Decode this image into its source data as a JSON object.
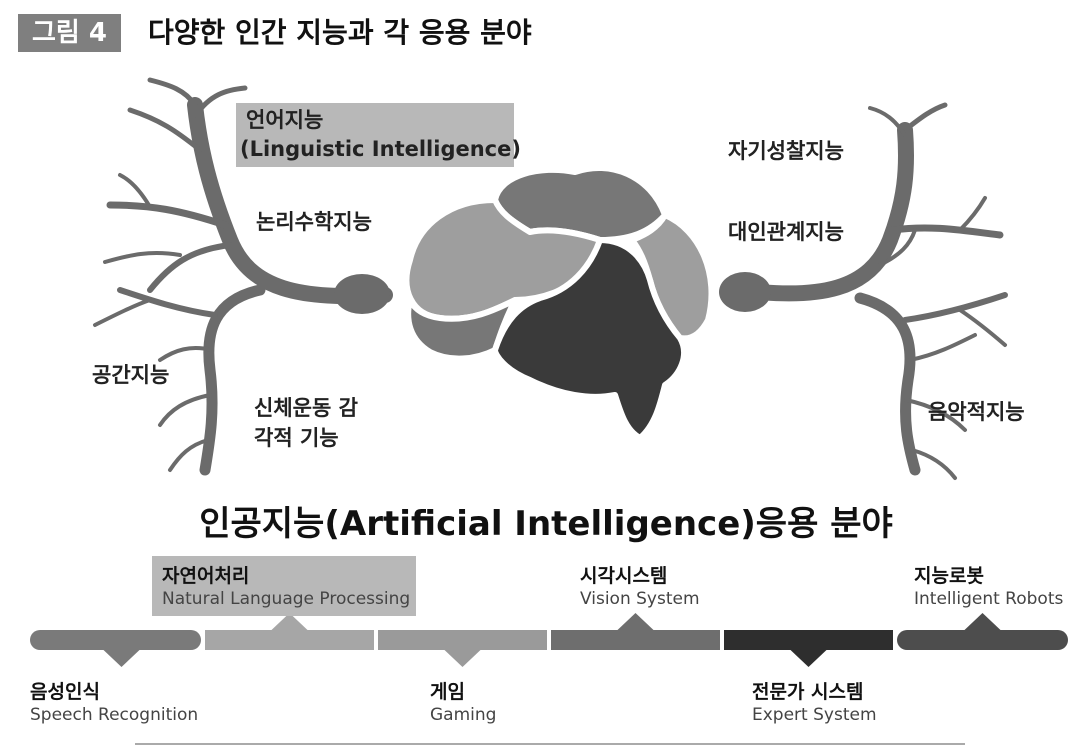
{
  "figure": {
    "label": "그림 4",
    "title": "다양한 인간 지능과 각 응용 분야"
  },
  "intelligences": {
    "linguistic_ko": "언어지능",
    "linguistic_en": "(Linguistic Intelligence)",
    "logical": "논리수학지능",
    "spatial": "공간지능",
    "bodily_line1": "신체운동 감",
    "bodily_line2": "각적 기능",
    "intrapersonal": "자기성찰지능",
    "interpersonal": "대인관계지능",
    "musical": "음악적지능"
  },
  "ai_section_title": "인공지능(Artificial Intelligence)응용 분야",
  "applications": [
    {
      "ko": "음성인식",
      "en": "Speech Recognition",
      "color": "#7a7a7a",
      "pointer": "down"
    },
    {
      "ko": "자연어처리",
      "en": "Natural Language Processing",
      "color": "#a6a6a6",
      "pointer": "up",
      "highlighted": true
    },
    {
      "ko": "게임",
      "en": "Gaming",
      "color": "#9a9a9a",
      "pointer": "down"
    },
    {
      "ko": "시각시스템",
      "en": "Vision System",
      "color": "#6e6e6e",
      "pointer": "up"
    },
    {
      "ko": "전문가 시스템",
      "en": "Expert System",
      "color": "#2e2e2e",
      "pointer": "down"
    },
    {
      "ko": "지능로봇",
      "en": "Intelligent Robots",
      "color": "#4d4d4d",
      "pointer": "up"
    }
  ],
  "colors": {
    "branch": "#6b6b6b",
    "brain_light": "#9e9e9e",
    "brain_mid": "#777777",
    "brain_dark": "#3a3a3a",
    "brain_darker": "#333333",
    "highlight": "#b8b8b8"
  }
}
